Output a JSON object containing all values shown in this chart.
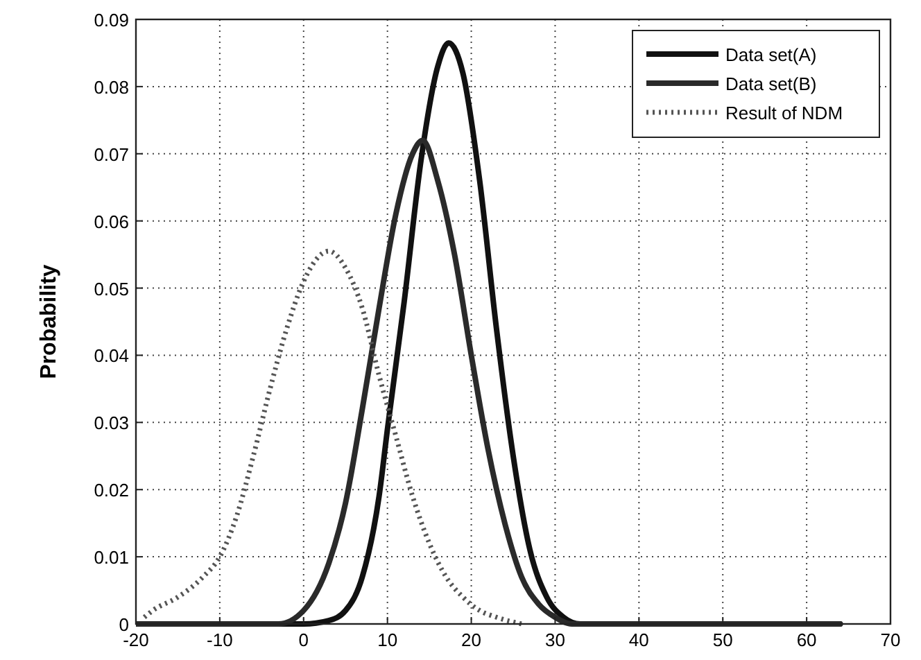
{
  "chart_data": {
    "type": "line",
    "ylabel": "Probability",
    "xlim": [
      -20,
      70
    ],
    "ylim": [
      0,
      0.09
    ],
    "xticks": [
      -20,
      -10,
      0,
      10,
      20,
      30,
      40,
      50,
      60,
      70
    ],
    "yticks": [
      0,
      0.01,
      0.02,
      0.03,
      0.04,
      0.05,
      0.06,
      0.07,
      0.08,
      0.09
    ],
    "grid": true,
    "legend": "top right",
    "series": [
      {
        "name": "Data set(A)",
        "color": "#111111",
        "line_style": "solid",
        "x": [
          -20,
          0,
          3,
          5,
          7,
          9,
          10,
          12,
          14,
          16,
          17.3,
          19,
          21,
          23,
          25,
          27,
          29,
          31,
          33,
          64
        ],
        "values": [
          0,
          0,
          0.0005,
          0.002,
          0.007,
          0.019,
          0.029,
          0.048,
          0.069,
          0.083,
          0.0865,
          0.082,
          0.066,
          0.044,
          0.025,
          0.011,
          0.004,
          0.001,
          0,
          0
        ]
      },
      {
        "name": "Data set(B)",
        "color": "#2a2a2a",
        "line_style": "solid",
        "x": [
          -20,
          -3,
          0,
          3,
          5,
          7,
          9,
          11,
          13,
          14.2,
          16,
          18,
          20,
          22,
          24,
          26,
          28,
          30,
          32,
          64
        ],
        "values": [
          0,
          0,
          0.002,
          0.009,
          0.018,
          0.032,
          0.047,
          0.061,
          0.07,
          0.072,
          0.066,
          0.055,
          0.04,
          0.026,
          0.015,
          0.007,
          0.003,
          0.001,
          0,
          0
        ]
      },
      {
        "name": "Result of NDM",
        "color": "#555555",
        "line_style": "dotted",
        "x": [
          -19,
          -18,
          -15,
          -12,
          -10,
          -8,
          -6,
          -4,
          -2,
          0,
          3,
          5,
          7,
          9,
          11,
          13,
          15,
          17,
          19,
          21,
          23,
          26
        ],
        "values": [
          0.001,
          0.002,
          0.004,
          0.007,
          0.01,
          0.016,
          0.025,
          0.035,
          0.044,
          0.051,
          0.0555,
          0.053,
          0.047,
          0.037,
          0.028,
          0.019,
          0.012,
          0.007,
          0.004,
          0.002,
          0.001,
          0
        ]
      }
    ]
  }
}
